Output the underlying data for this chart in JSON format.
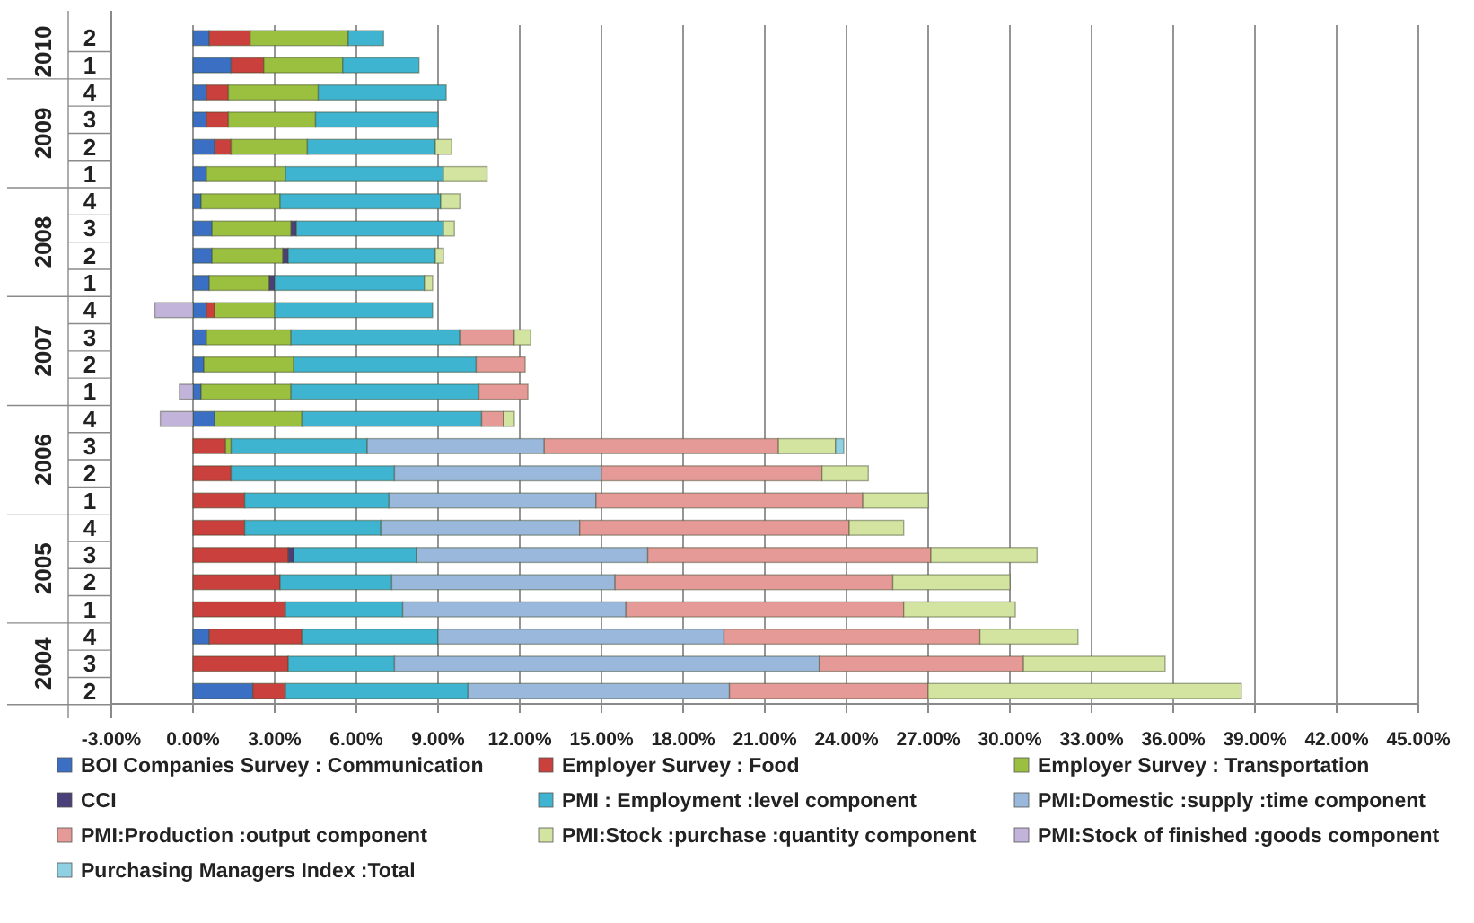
{
  "chart_data": {
    "type": "bar",
    "orientation": "horizontal",
    "stacked": true,
    "grid": "x",
    "legend": "bottom",
    "categories": [
      "2",
      "1",
      "4",
      "3",
      "2",
      "1",
      "4",
      "3",
      "2",
      "1",
      "4",
      "3",
      "2",
      "1",
      "4",
      "3",
      "2",
      "1",
      "4",
      "3",
      "2",
      "1",
      "4",
      "3",
      "2"
    ],
    "annotations": [
      "2010",
      "2009",
      "2008",
      "2007",
      "2006",
      "2005",
      "2004"
    ],
    "xlim": [
      -3,
      45
    ],
    "xticks": [
      {
        "value": -3,
        "label": "-3.00%"
      },
      {
        "value": 0,
        "label": "0.00%"
      },
      {
        "value": 3,
        "label": "3.00%"
      },
      {
        "value": 6,
        "label": "6.00%"
      },
      {
        "value": 9,
        "label": "9.00%"
      },
      {
        "value": 12,
        "label": "12.00%"
      },
      {
        "value": 15,
        "label": "15.00%"
      },
      {
        "value": 18,
        "label": "18.00%"
      },
      {
        "value": 21,
        "label": "21.00%"
      },
      {
        "value": 24,
        "label": "24.00%"
      },
      {
        "value": 27,
        "label": "27.00%"
      },
      {
        "value": 30,
        "label": "30.00%"
      },
      {
        "value": 33,
        "label": "33.00%"
      },
      {
        "value": 36,
        "label": "36.00%"
      },
      {
        "value": 39,
        "label": "39.00%"
      },
      {
        "value": 42,
        "label": "42.00%"
      },
      {
        "value": 45,
        "label": "45.00%"
      }
    ],
    "series": [
      {
        "name": "BOI Companies Survey : Communication",
        "color": "#3a6fc4",
        "values": [
          0.6,
          1.4,
          0.5,
          0.5,
          0.8,
          0.5,
          0.3,
          0.7,
          0.7,
          0.6,
          0.5,
          0.5,
          0.4,
          0.3,
          0.8,
          null,
          null,
          null,
          null,
          null,
          null,
          null,
          0.6,
          null,
          2.2
        ]
      },
      {
        "name": "Employer Survey : Food",
        "color": "#c9403c",
        "values": [
          1.5,
          1.2,
          0.8,
          0.8,
          0.6,
          null,
          null,
          null,
          null,
          null,
          0.3,
          null,
          null,
          null,
          null,
          1.2,
          1.4,
          1.9,
          1.9,
          3.5,
          3.2,
          3.4,
          3.4,
          3.5,
          1.2
        ]
      },
      {
        "name": "Employer Survey : Transportation",
        "color": "#9bc03f",
        "values": [
          3.6,
          2.9,
          3.3,
          3.2,
          2.8,
          2.9,
          2.9,
          2.9,
          2.6,
          2.2,
          2.2,
          3.1,
          3.3,
          3.3,
          3.2,
          0.2,
          null,
          null,
          null,
          null,
          null,
          null,
          null,
          null,
          null
        ]
      },
      {
        "name": "CCI",
        "color": "#4b3f7a",
        "values": [
          null,
          null,
          null,
          null,
          null,
          null,
          null,
          0.2,
          0.2,
          0.2,
          null,
          null,
          null,
          null,
          null,
          null,
          null,
          null,
          null,
          0.2,
          null,
          null,
          null,
          null,
          null
        ]
      },
      {
        "name": "PMI : Employment :level component",
        "color": "#3fb4d0",
        "values": [
          1.3,
          2.8,
          4.7,
          4.5,
          4.7,
          5.8,
          5.9,
          5.4,
          5.4,
          5.5,
          5.8,
          6.2,
          6.7,
          6.9,
          6.6,
          5.0,
          6.0,
          5.3,
          5.0,
          4.5,
          4.1,
          4.3,
          5.0,
          3.9,
          6.7
        ]
      },
      {
        "name": "PMI:Domestic :supply :time component",
        "color": "#9ab8dc",
        "values": [
          null,
          null,
          null,
          null,
          null,
          null,
          null,
          null,
          null,
          null,
          null,
          null,
          null,
          null,
          null,
          6.5,
          7.6,
          7.6,
          7.3,
          8.5,
          8.2,
          8.2,
          10.5,
          15.6,
          9.6
        ]
      },
      {
        "name": "PMI:Production :output component",
        "color": "#e59a98",
        "values": [
          null,
          null,
          null,
          null,
          null,
          null,
          null,
          null,
          null,
          null,
          null,
          2.0,
          1.8,
          1.8,
          0.8,
          8.6,
          8.1,
          9.8,
          9.9,
          10.4,
          10.2,
          10.2,
          9.4,
          7.5,
          7.3
        ]
      },
      {
        "name": "PMI:Stock :purchase :quantity component",
        "color": "#d3e3a0",
        "values": [
          null,
          null,
          null,
          null,
          0.6,
          1.6,
          0.7,
          0.4,
          0.3,
          0.3,
          null,
          0.6,
          null,
          null,
          0.4,
          2.1,
          1.7,
          2.4,
          2.0,
          3.9,
          4.3,
          4.1,
          3.6,
          5.2,
          11.5
        ]
      },
      {
        "name": "PMI:Stock of finished :goods component",
        "color": "#c2b3da",
        "values": [
          null,
          null,
          null,
          null,
          null,
          null,
          null,
          null,
          null,
          null,
          -1.4,
          null,
          null,
          -0.5,
          -1.2,
          null,
          null,
          null,
          null,
          null,
          null,
          null,
          null,
          null,
          null
        ]
      },
      {
        "name": "Purchasing Managers Index :Total",
        "color": "#8fd0e2",
        "values": [
          null,
          null,
          null,
          null,
          null,
          null,
          null,
          null,
          null,
          null,
          null,
          null,
          null,
          null,
          null,
          0.3,
          null,
          null,
          null,
          null,
          null,
          null,
          null,
          null,
          null
        ]
      }
    ]
  }
}
